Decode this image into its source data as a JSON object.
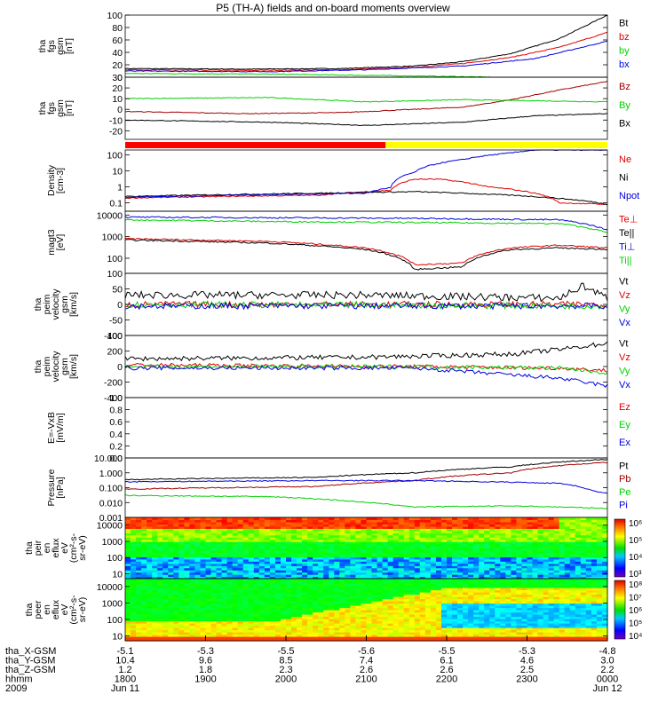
{
  "title": "P5 (TH-A) fields and on-board moments overview",
  "colors": {
    "black": "#000000",
    "red": "#e00000",
    "green": "#00d000",
    "blue": "#0000e0",
    "darkred": "#a00000",
    "yellow": "#ffff00",
    "flagred": "#ff0000"
  },
  "chart_data": {
    "type": "line",
    "time_axis": {
      "tick_labels": [
        "1800",
        "1900",
        "2000",
        "2100",
        "2200",
        "2300",
        "0000"
      ],
      "date_start": "Jun 11",
      "date_end": "Jun 12",
      "year": "2009",
      "rows": [
        {
          "label": "tha_X-GSM",
          "values": [
            "-5.1",
            "-5.3",
            "-5.5",
            "-5.6",
            "-5.5",
            "-5.3",
            "-4.8"
          ]
        },
        {
          "label": "tha_Y-GSM",
          "values": [
            "10.4",
            "9.6",
            "8.5",
            "7.4",
            "6.1",
            "4.6",
            "3.0"
          ]
        },
        {
          "label": "tha_Z-GSM",
          "values": [
            "1.2",
            "1.8",
            "2.3",
            "2.6",
            "2.6",
            "2.5",
            "2.2"
          ]
        },
        {
          "label": "hhmm",
          "values": [
            "1800",
            "1900",
            "2000",
            "2100",
            "2200",
            "2300",
            "0000"
          ]
        },
        {
          "label": "2009",
          "values": [
            "Jun 11",
            "",
            "",
            "",
            "",
            "",
            "Jun 12"
          ]
        }
      ]
    },
    "panels": [
      {
        "ylabel": [
          "tha",
          "fgs",
          "gsm",
          "[nT]"
        ],
        "scale": "linear",
        "ylim": [
          0,
          100
        ],
        "ticks": [
          "0",
          "20",
          "40",
          "60",
          "80",
          "100"
        ],
        "series": [
          {
            "name": "Bt",
            "color": "black",
            "points": [
              [
                0,
                14
              ],
              [
                0.25,
                13
              ],
              [
                0.45,
                14
              ],
              [
                0.6,
                18
              ],
              [
                0.7,
                25
              ],
              [
                0.8,
                38
              ],
              [
                0.9,
                62
              ],
              [
                1,
                100
              ]
            ]
          },
          {
            "name": "bz",
            "color": "red",
            "points": [
              [
                0,
                12
              ],
              [
                0.25,
                11
              ],
              [
                0.45,
                12
              ],
              [
                0.6,
                16
              ],
              [
                0.7,
                22
              ],
              [
                0.8,
                32
              ],
              [
                0.9,
                48
              ],
              [
                1,
                72
              ]
            ]
          },
          {
            "name": "by",
            "color": "green",
            "points": [
              [
                0,
                6
              ],
              [
                0.3,
                5
              ],
              [
                0.5,
                3
              ],
              [
                0.7,
                1
              ],
              [
                0.85,
                -2
              ],
              [
                1,
                -6
              ]
            ]
          },
          {
            "name": "bx",
            "color": "blue",
            "points": [
              [
                0,
                10
              ],
              [
                0.3,
                9
              ],
              [
                0.5,
                12
              ],
              [
                0.7,
                18
              ],
              [
                0.85,
                30
              ],
              [
                1,
                58
              ]
            ]
          }
        ]
      },
      {
        "ylabel": [
          "tha",
          "fgs",
          "gsm",
          "[nT]"
        ],
        "scale": "linear",
        "ylim": [
          -28,
          30
        ],
        "ticks": [
          "-20",
          "-10",
          "0",
          "10",
          "20",
          "30"
        ],
        "series": [
          {
            "name": "Bz",
            "color": "darkred",
            "points": [
              [
                0,
                -2
              ],
              [
                0.25,
                -4
              ],
              [
                0.45,
                -3
              ],
              [
                0.6,
                0
              ],
              [
                0.7,
                2
              ],
              [
                0.8,
                9
              ],
              [
                0.9,
                18
              ],
              [
                1,
                26
              ]
            ]
          },
          {
            "name": "By",
            "color": "green",
            "points": [
              [
                0,
                10
              ],
              [
                0.3,
                11
              ],
              [
                0.5,
                7
              ],
              [
                0.7,
                9
              ],
              [
                0.85,
                8
              ],
              [
                1,
                7
              ]
            ]
          },
          {
            "name": "Bx",
            "color": "black",
            "points": [
              [
                0,
                -10
              ],
              [
                0.3,
                -12
              ],
              [
                0.5,
                -15
              ],
              [
                0.7,
                -12
              ],
              [
                0.85,
                -6
              ],
              [
                1,
                -4
              ]
            ]
          }
        ]
      },
      {
        "type": "flag_bar",
        "segments": [
          {
            "from": 0,
            "to": 0.54,
            "color": "flagred"
          },
          {
            "from": 0.54,
            "to": 1,
            "color": "yellow"
          }
        ]
      },
      {
        "ylabel": [
          "Density",
          "[cm-3]"
        ],
        "scale": "log",
        "ylim": [
          0.03,
          200
        ],
        "ticks": [
          "0.1",
          "1",
          "10",
          "100"
        ],
        "series": [
          {
            "name": "Ne",
            "color": "red",
            "points": [
              [
                0,
                0.2
              ],
              [
                0.4,
                0.3
              ],
              [
                0.55,
                0.6
              ],
              [
                0.6,
                3
              ],
              [
                0.65,
                3
              ],
              [
                0.75,
                1
              ],
              [
                0.9,
                0.1
              ],
              [
                1,
                0.08
              ]
            ]
          },
          {
            "name": "Ni",
            "color": "black",
            "points": [
              [
                0,
                0.25
              ],
              [
                0.4,
                0.4
              ],
              [
                0.6,
                0.5
              ],
              [
                0.8,
                0.3
              ],
              [
                1,
                0.08
              ]
            ]
          },
          {
            "name": "Npot",
            "color": "blue",
            "points": [
              [
                0,
                0.22
              ],
              [
                0.5,
                0.4
              ],
              [
                0.55,
                0.9
              ],
              [
                0.6,
                8
              ],
              [
                0.7,
                50
              ],
              [
                0.8,
                130
              ],
              [
                0.85,
                200
              ]
            ]
          }
        ]
      },
      {
        "ylabel": [
          "magt3",
          "[eV]"
        ],
        "scale": "log",
        "ylim": [
          20,
          15000
        ],
        "ticks": [
          "100",
          "1000",
          "10000"
        ],
        "series": [
          {
            "name": "Te⊥",
            "color": "red",
            "points": [
              [
                0,
                800
              ],
              [
                0.3,
                600
              ],
              [
                0.5,
                300
              ],
              [
                0.6,
                50
              ],
              [
                0.7,
                60
              ],
              [
                0.8,
                300
              ],
              [
                0.9,
                400
              ],
              [
                1,
                300
              ]
            ]
          },
          {
            "name": "Te||",
            "color": "black",
            "points": [
              [
                0,
                700
              ],
              [
                0.3,
                500
              ],
              [
                0.5,
                250
              ],
              [
                0.6,
                30
              ],
              [
                0.7,
                40
              ],
              [
                0.8,
                250
              ],
              [
                0.9,
                300
              ],
              [
                1,
                260
              ]
            ]
          },
          {
            "name": "Ti⊥",
            "color": "blue",
            "points": [
              [
                0,
                8000
              ],
              [
                0.3,
                7500
              ],
              [
                0.6,
                7000
              ],
              [
                0.9,
                6000
              ],
              [
                1,
                2000
              ]
            ]
          },
          {
            "name": "Ti||",
            "color": "green",
            "points": [
              [
                0,
                6000
              ],
              [
                0.3,
                5000
              ],
              [
                0.6,
                4500
              ],
              [
                0.9,
                4000
              ],
              [
                1,
                1500
              ]
            ]
          }
        ]
      },
      {
        "ylabel": [
          "tha",
          "peim",
          "velocity",
          "gsm",
          "[km/s]"
        ],
        "scale": "linear",
        "ylim": [
          -100,
          100
        ],
        "ticks": [
          "-100",
          "-50",
          "0",
          "50",
          "100"
        ],
        "series": [
          {
            "name": "Vt",
            "color": "black",
            "points": [
              [
                0,
                30
              ],
              [
                0.5,
                30
              ],
              [
                0.9,
                20
              ],
              [
                0.95,
                60
              ],
              [
                1,
                20
              ]
            ],
            "noise": 12
          },
          {
            "name": "Vz",
            "color": "red",
            "points": [
              [
                0,
                0
              ],
              [
                1,
                0
              ]
            ],
            "noise": 10
          },
          {
            "name": "Vy",
            "color": "green",
            "points": [
              [
                0,
                0
              ],
              [
                1,
                -5
              ]
            ],
            "noise": 10
          },
          {
            "name": "Vx",
            "color": "blue",
            "points": [
              [
                0,
                -5
              ],
              [
                1,
                -5
              ]
            ],
            "noise": 10
          }
        ]
      },
      {
        "ylabel": [
          "tha",
          "peim",
          "velocity",
          "gsm",
          "[km/s]"
        ],
        "scale": "linear",
        "ylim": [
          -400,
          400
        ],
        "ticks": [
          "-400",
          "-200",
          "0",
          "200",
          "400"
        ],
        "series": [
          {
            "name": "Vt",
            "color": "black",
            "points": [
              [
                0,
                100
              ],
              [
                0.5,
                120
              ],
              [
                0.8,
                160
              ],
              [
                0.9,
                220
              ],
              [
                1,
                300
              ]
            ],
            "noise": 30
          },
          {
            "name": "Vz",
            "color": "red",
            "points": [
              [
                0,
                20
              ],
              [
                0.6,
                0
              ],
              [
                0.9,
                -20
              ],
              [
                1,
                -50
              ]
            ],
            "noise": 25
          },
          {
            "name": "Vy",
            "color": "green",
            "points": [
              [
                0,
                0
              ],
              [
                0.6,
                0
              ],
              [
                0.9,
                -20
              ],
              [
                1,
                -80
              ]
            ],
            "noise": 25
          },
          {
            "name": "Vx",
            "color": "blue",
            "points": [
              [
                0,
                -20
              ],
              [
                0.6,
                -20
              ],
              [
                0.9,
                -150
              ],
              [
                1,
                -250
              ]
            ],
            "noise": 25
          }
        ]
      },
      {
        "ylabel": [
          "E=-VxB",
          "[mV/m]"
        ],
        "scale": "linear",
        "ylim": [
          0,
          1
        ],
        "ticks": [
          "0.0",
          "0.2",
          "0.4",
          "0.6",
          "0.8",
          "1.0"
        ],
        "series": [
          {
            "name": "Ez",
            "color": "red",
            "points": []
          },
          {
            "name": "Ey",
            "color": "green",
            "points": []
          },
          {
            "name": "Ex",
            "color": "blue",
            "points": []
          }
        ]
      },
      {
        "ylabel": [
          "Pressure",
          "[nPa]"
        ],
        "scale": "log",
        "ylim": [
          0.001,
          10
        ],
        "ticks": [
          "0.001",
          "0.010",
          "0.100",
          "1.000",
          "10.000"
        ],
        "series": [
          {
            "name": "Pt",
            "color": "black",
            "points": [
              [
                0,
                0.35
              ],
              [
                0.4,
                0.5
              ],
              [
                0.6,
                1
              ],
              [
                0.8,
                2.5
              ],
              [
                1,
                8
              ]
            ]
          },
          {
            "name": "Pb",
            "color": "darkred",
            "points": [
              [
                0,
                0.08
              ],
              [
                0.4,
                0.12
              ],
              [
                0.6,
                0.3
              ],
              [
                0.8,
                1
              ],
              [
                1,
                5
              ]
            ]
          },
          {
            "name": "Pe",
            "color": "green",
            "points": [
              [
                0,
                0.03
              ],
              [
                0.3,
                0.025
              ],
              [
                0.5,
                0.01
              ],
              [
                0.6,
                0.005
              ],
              [
                0.8,
                0.006
              ],
              [
                1,
                0.004
              ]
            ]
          },
          {
            "name": "Pi",
            "color": "blue",
            "points": [
              [
                0,
                0.25
              ],
              [
                0.4,
                0.3
              ],
              [
                0.6,
                0.3
              ],
              [
                0.9,
                0.2
              ],
              [
                0.97,
                0.06
              ],
              [
                1,
                0.04
              ]
            ]
          }
        ]
      },
      {
        "type": "spectrogram",
        "ylabel": [
          "tha",
          "peir",
          "en",
          "eflux",
          "eV",
          "(cm²-s-",
          "sr-eV)"
        ],
        "scale": "log",
        "ylim": [
          5,
          30000
        ],
        "ticks": [
          "10",
          "100",
          "1000",
          "10000"
        ],
        "colorbar_ticks": [
          "10³",
          "10⁴",
          "10⁵",
          "10⁶"
        ]
      },
      {
        "type": "spectrogram",
        "ylabel": [
          "tha",
          "peer",
          "en",
          "eflux",
          "eV",
          "(cm²-s-",
          "sr-eV)"
        ],
        "scale": "log",
        "ylim": [
          5,
          30000
        ],
        "ticks": [
          "10",
          "100",
          "1000",
          "10000"
        ],
        "colorbar_ticks": [
          "10⁴",
          "10⁵",
          "10⁶",
          "10⁷",
          "10⁸"
        ]
      }
    ]
  }
}
